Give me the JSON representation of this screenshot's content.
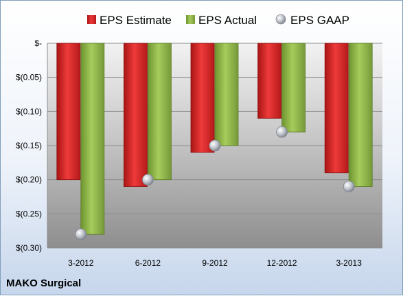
{
  "company": "MAKO Surgical",
  "chart_data": {
    "type": "bar",
    "categories": [
      "3-2012",
      "6-2012",
      "9-2012",
      "12-2012",
      "3-2013"
    ],
    "series": [
      {
        "name": "EPS Estimate",
        "values": [
          -0.2,
          -0.21,
          -0.16,
          -0.11,
          -0.19
        ],
        "color": "#d42a2a"
      },
      {
        "name": "EPS Actual",
        "values": [
          -0.28,
          -0.2,
          -0.15,
          -0.13,
          -0.21
        ],
        "color": "#8db443"
      }
    ],
    "markers": {
      "name": "EPS GAAP",
      "values": [
        -0.28,
        -0.2,
        -0.15,
        -0.13,
        -0.21
      ],
      "color": "#b8bcc4"
    },
    "ylim": [
      -0.3,
      0
    ],
    "yticks": [
      0,
      -0.05,
      -0.1,
      -0.15,
      -0.2,
      -0.25,
      -0.3
    ],
    "ytick_labels": [
      "$-",
      "$(0.05)",
      "$(0.10)",
      "$(0.15)",
      "$(0.20)",
      "$(0.25)",
      "$(0.30)"
    ],
    "grid": true,
    "legend_position": "top"
  }
}
